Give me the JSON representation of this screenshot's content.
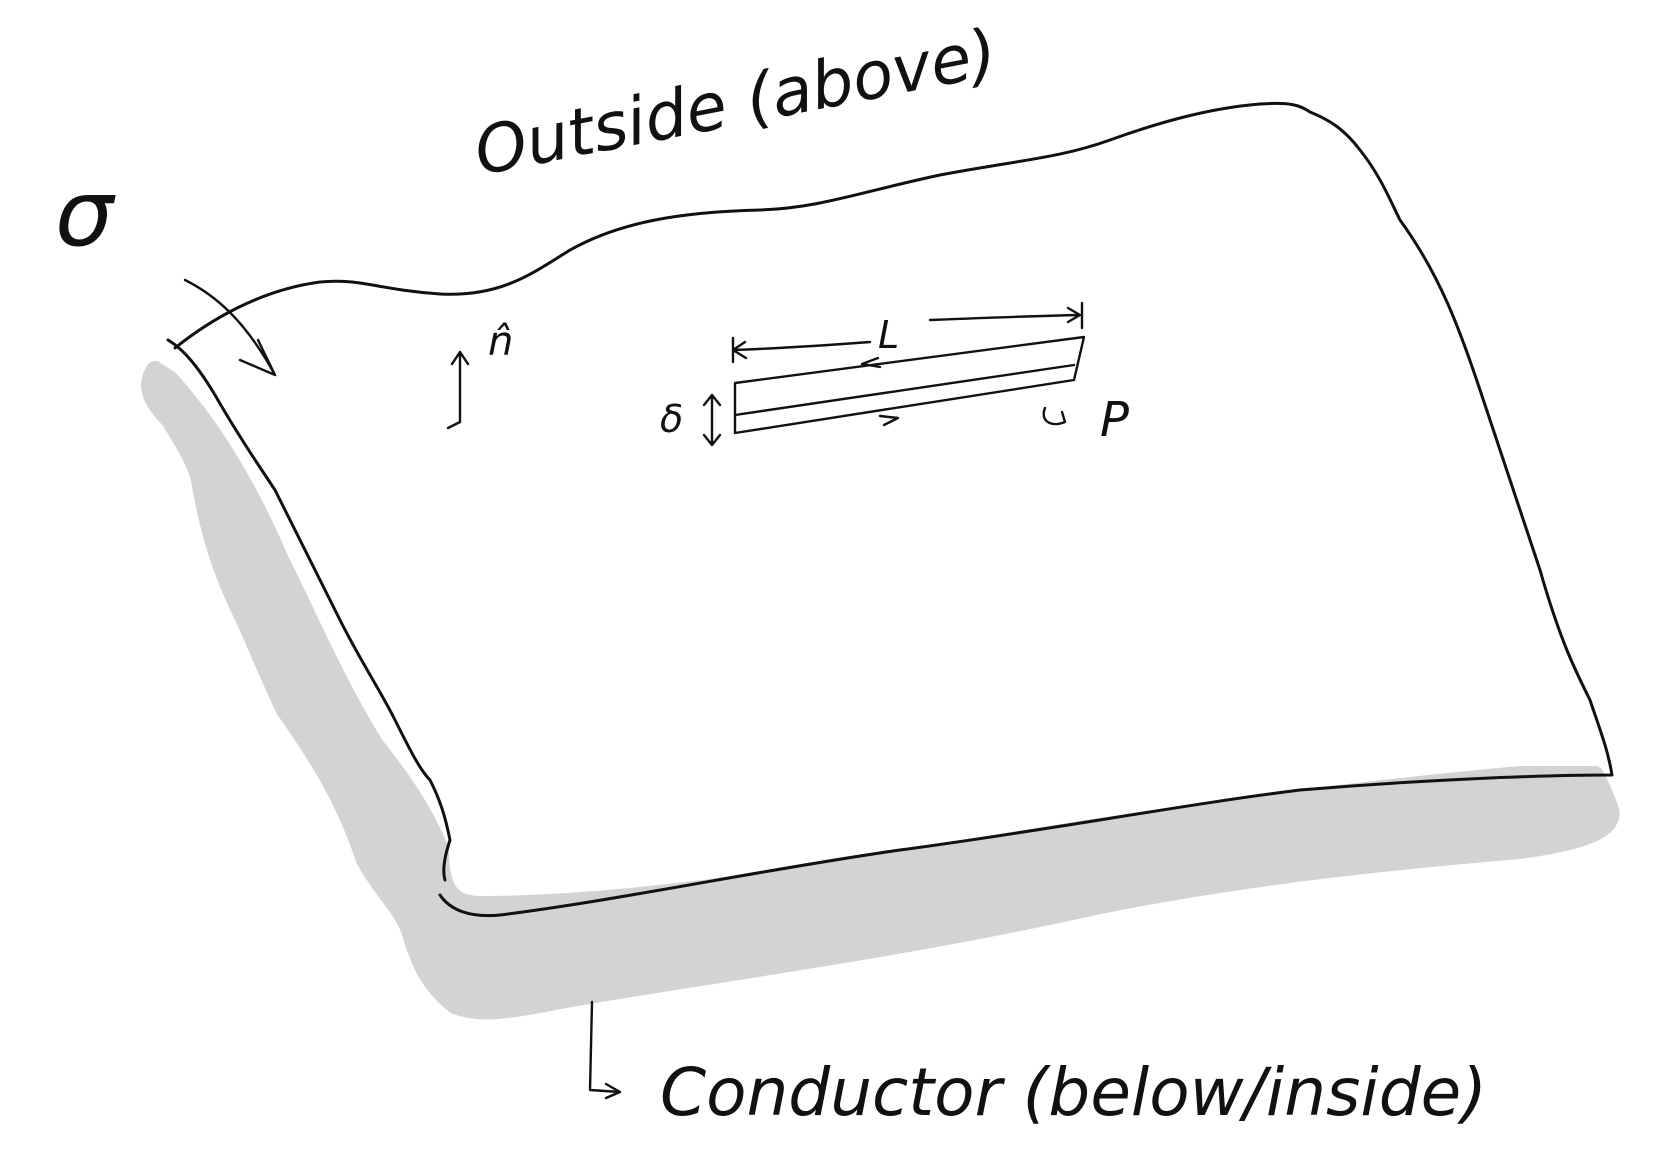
{
  "labels": {
    "outside": "Outside (above)",
    "conductor": "Conductor (below/inside)",
    "sigma": "σ",
    "normal": "n̂",
    "length": "L",
    "thickness": "δ",
    "path": "P"
  },
  "colors": {
    "ink": "#111111",
    "shadow": "#d3d3d3",
    "background": "#ffffff"
  }
}
